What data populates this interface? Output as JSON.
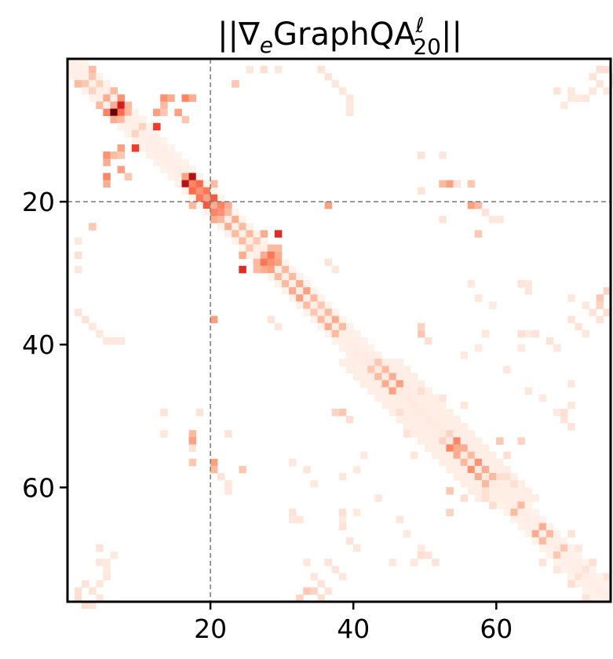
{
  "chart_data": {
    "type": "heatmap",
    "title": {
      "prefix": "||∇",
      "prefix_sub": "e",
      "main": "GraphQA",
      "sup": "ℓ",
      "sub": "20",
      "suffix": "||"
    },
    "xlabel": "",
    "ylabel": "",
    "size": 76,
    "x_range": [
      0,
      76
    ],
    "y_range": [
      0,
      76
    ],
    "x_ticks": [
      20,
      40,
      60
    ],
    "y_ticks": [
      20,
      40,
      60
    ],
    "x_tick_labels": [
      "20",
      "40",
      "60"
    ],
    "y_tick_labels": [
      "20",
      "40",
      "60"
    ],
    "reference_lines": {
      "x": 20,
      "y": 20,
      "style": "dashed",
      "color": "#808080"
    },
    "colormap": "Reds",
    "color_low": "#ffffff",
    "color_high": "#67000d",
    "grid": false,
    "value_range": [
      0,
      1
    ],
    "band": {
      "description_ranges": [
        [
          0,
          76
        ]
      ],
      "base_intensity": 0.05
    },
    "cells": [
      [
        7,
        6,
        1.0
      ],
      [
        6,
        7,
        0.85
      ],
      [
        7,
        7,
        0.6
      ],
      [
        6,
        6,
        0.35
      ],
      [
        5,
        7,
        0.45
      ],
      [
        7,
        5,
        0.5
      ],
      [
        8,
        6,
        0.35
      ],
      [
        6,
        8,
        0.3
      ],
      [
        5,
        5,
        0.35
      ],
      [
        4,
        6,
        0.3
      ],
      [
        6,
        4,
        0.3
      ],
      [
        3,
        1,
        0.3
      ],
      [
        1,
        3,
        0.3
      ],
      [
        3,
        2,
        0.25
      ],
      [
        2,
        3,
        0.25
      ],
      [
        4,
        3,
        0.2
      ],
      [
        3,
        4,
        0.2
      ],
      [
        12,
        9,
        0.75
      ],
      [
        9,
        12,
        0.75
      ],
      [
        12,
        7,
        0.4
      ],
      [
        7,
        12,
        0.4
      ],
      [
        8,
        7,
        0.3
      ],
      [
        7,
        8,
        0.3
      ],
      [
        10,
        9,
        0.2
      ],
      [
        9,
        10,
        0.2
      ],
      [
        13,
        5,
        0.45
      ],
      [
        5,
        13,
        0.45
      ],
      [
        14,
        5,
        0.35
      ],
      [
        5,
        14,
        0.35
      ],
      [
        13,
        6,
        0.3
      ],
      [
        6,
        13,
        0.3
      ],
      [
        13,
        7,
        0.25
      ],
      [
        7,
        13,
        0.25
      ],
      [
        17,
        16,
        0.9
      ],
      [
        16,
        17,
        0.9
      ],
      [
        17,
        17,
        0.5
      ],
      [
        16,
        16,
        0.4
      ],
      [
        18,
        17,
        0.6
      ],
      [
        17,
        18,
        0.6
      ],
      [
        18,
        18,
        0.45
      ],
      [
        19,
        18,
        0.55
      ],
      [
        18,
        19,
        0.55
      ],
      [
        19,
        19,
        0.4
      ],
      [
        20,
        19,
        0.65
      ],
      [
        19,
        20,
        0.65
      ],
      [
        20,
        20,
        0.35
      ],
      [
        21,
        20,
        0.5
      ],
      [
        20,
        21,
        0.5
      ],
      [
        22,
        20,
        0.35
      ],
      [
        20,
        22,
        0.35
      ],
      [
        21,
        21,
        0.45
      ],
      [
        22,
        21,
        0.3
      ],
      [
        21,
        22,
        0.3
      ],
      [
        16,
        5,
        0.5
      ],
      [
        5,
        16,
        0.5
      ],
      [
        17,
        5,
        0.35
      ],
      [
        5,
        17,
        0.35
      ],
      [
        15,
        7,
        0.4
      ],
      [
        7,
        15,
        0.4
      ],
      [
        16,
        8,
        0.25
      ],
      [
        8,
        16,
        0.25
      ],
      [
        24,
        29,
        0.8
      ],
      [
        29,
        24,
        0.8
      ],
      [
        29,
        24,
        0.8
      ],
      [
        27,
        28,
        0.55
      ],
      [
        28,
        27,
        0.55
      ],
      [
        28,
        28,
        0.45
      ],
      [
        29,
        28,
        0.4
      ],
      [
        28,
        29,
        0.4
      ],
      [
        27,
        24,
        0.35
      ],
      [
        24,
        27,
        0.35
      ],
      [
        28,
        26,
        0.3
      ],
      [
        26,
        28,
        0.3
      ],
      [
        29,
        26,
        0.3
      ],
      [
        26,
        29,
        0.3
      ],
      [
        29,
        27,
        0.35
      ],
      [
        27,
        29,
        0.35
      ],
      [
        23,
        22,
        0.35
      ],
      [
        22,
        23,
        0.35
      ],
      [
        24,
        23,
        0.3
      ],
      [
        23,
        24,
        0.3
      ],
      [
        25,
        24,
        0.3
      ],
      [
        24,
        25,
        0.3
      ],
      [
        26,
        25,
        0.25
      ],
      [
        25,
        26,
        0.25
      ],
      [
        27,
        27,
        0.35
      ],
      [
        30,
        29,
        0.3
      ],
      [
        29,
        30,
        0.3
      ],
      [
        31,
        30,
        0.3
      ],
      [
        30,
        31,
        0.3
      ],
      [
        32,
        31,
        0.35
      ],
      [
        31,
        32,
        0.35
      ],
      [
        33,
        32,
        0.4
      ],
      [
        32,
        33,
        0.4
      ],
      [
        34,
        33,
        0.3
      ],
      [
        33,
        34,
        0.3
      ],
      [
        35,
        34,
        0.25
      ],
      [
        34,
        35,
        0.25
      ],
      [
        36,
        35,
        0.3
      ],
      [
        35,
        36,
        0.3
      ],
      [
        37,
        36,
        0.35
      ],
      [
        36,
        37,
        0.35
      ],
      [
        38,
        37,
        0.3
      ],
      [
        37,
        38,
        0.3
      ],
      [
        20,
        36,
        0.4
      ],
      [
        36,
        20,
        0.4
      ],
      [
        20,
        17,
        0.3
      ],
      [
        17,
        20,
        0.3
      ],
      [
        20,
        56,
        0.4
      ],
      [
        56,
        20,
        0.4
      ],
      [
        17,
        52,
        0.3
      ],
      [
        52,
        17,
        0.3
      ],
      [
        17,
        53,
        0.4
      ],
      [
        53,
        17,
        0.4
      ],
      [
        20,
        57,
        0.3
      ],
      [
        57,
        20,
        0.3
      ],
      [
        53,
        54,
        0.5
      ],
      [
        54,
        53,
        0.5
      ],
      [
        54,
        54,
        0.35
      ],
      [
        55,
        54,
        0.35
      ],
      [
        54,
        55,
        0.35
      ],
      [
        56,
        55,
        0.3
      ],
      [
        55,
        56,
        0.3
      ],
      [
        57,
        56,
        0.45
      ],
      [
        56,
        57,
        0.45
      ],
      [
        58,
        57,
        0.35
      ],
      [
        57,
        58,
        0.35
      ],
      [
        59,
        58,
        0.3
      ],
      [
        58,
        59,
        0.3
      ],
      [
        45,
        44,
        0.35
      ],
      [
        44,
        45,
        0.35
      ],
      [
        46,
        45,
        0.4
      ],
      [
        45,
        46,
        0.4
      ],
      [
        43,
        44,
        0.3
      ],
      [
        44,
        43,
        0.3
      ],
      [
        42,
        43,
        0.25
      ],
      [
        43,
        42,
        0.25
      ],
      [
        63,
        62,
        0.3
      ],
      [
        62,
        63,
        0.3
      ],
      [
        66,
        65,
        0.35
      ],
      [
        65,
        66,
        0.35
      ],
      [
        67,
        66,
        0.3
      ],
      [
        66,
        67,
        0.3
      ],
      [
        69,
        68,
        0.25
      ],
      [
        68,
        69,
        0.25
      ],
      [
        49,
        38,
        0.25
      ],
      [
        38,
        49,
        0.25
      ],
      [
        52,
        17,
        0.3
      ],
      [
        17,
        52,
        0.3
      ],
      [
        57,
        24,
        0.25
      ],
      [
        24,
        57,
        0.25
      ],
      [
        32,
        75,
        0.2
      ],
      [
        75,
        32,
        0.2
      ],
      [
        33,
        74,
        0.25
      ],
      [
        74,
        33,
        0.25
      ],
      [
        34,
        74,
        0.2
      ],
      [
        74,
        34,
        0.2
      ],
      [
        35,
        1,
        0.12
      ],
      [
        1,
        35,
        0.12
      ],
      [
        36,
        2,
        0.12
      ],
      [
        2,
        36,
        0.12
      ],
      [
        37,
        3,
        0.1
      ],
      [
        3,
        37,
        0.1
      ],
      [
        38,
        4,
        0.1
      ],
      [
        4,
        38,
        0.1
      ],
      [
        39,
        5,
        0.1
      ],
      [
        5,
        39,
        0.1
      ],
      [
        39,
        6,
        0.1
      ],
      [
        6,
        39,
        0.1
      ],
      [
        39,
        7,
        0.1
      ],
      [
        7,
        39,
        0.1
      ],
      [
        27,
        1,
        0.15
      ],
      [
        1,
        27,
        0.15
      ],
      [
        29,
        1,
        0.1
      ],
      [
        1,
        29,
        0.1
      ],
      [
        25,
        1,
        0.1
      ],
      [
        1,
        25,
        0.1
      ],
      [
        23,
        3,
        0.25
      ],
      [
        3,
        23,
        0.25
      ],
      [
        49,
        13,
        0.12
      ],
      [
        13,
        49,
        0.12
      ],
      [
        52,
        13,
        0.1
      ],
      [
        13,
        52,
        0.1
      ],
      [
        56,
        17,
        0.25
      ],
      [
        17,
        56,
        0.25
      ],
      [
        74,
        1,
        0.15
      ],
      [
        1,
        74,
        0.15
      ],
      [
        75,
        1,
        0.15
      ],
      [
        1,
        75,
        0.15
      ],
      [
        76,
        2,
        0.15
      ],
      [
        2,
        76,
        0.15
      ],
      [
        76,
        3,
        0.12
      ],
      [
        3,
        76,
        0.12
      ],
      [
        68,
        4,
        0.12
      ],
      [
        4,
        68,
        0.12
      ],
      [
        70,
        4,
        0.1
      ],
      [
        4,
        70,
        0.1
      ],
      [
        72,
        5,
        0.1
      ],
      [
        5,
        72,
        0.1
      ],
      [
        73,
        4,
        0.1
      ],
      [
        4,
        73,
        0.1
      ],
      [
        55,
        61,
        0.15
      ],
      [
        61,
        55,
        0.15
      ],
      [
        52,
        53,
        0.2
      ],
      [
        53,
        52,
        0.2
      ],
      [
        58,
        60,
        0.15
      ],
      [
        60,
        58,
        0.15
      ],
      [
        60,
        53,
        0.25
      ],
      [
        53,
        60,
        0.25
      ],
      [
        58,
        61,
        0.15
      ],
      [
        61,
        58,
        0.15
      ],
      [
        59,
        62,
        0.15
      ],
      [
        62,
        59,
        0.15
      ],
      [
        49,
        37,
        0.2
      ],
      [
        37,
        49,
        0.2
      ],
      [
        50,
        39,
        0.15
      ],
      [
        39,
        50,
        0.15
      ],
      [
        53,
        63,
        0.2
      ],
      [
        63,
        53,
        0.2
      ],
      [
        70,
        73,
        0.15
      ],
      [
        73,
        70,
        0.15
      ],
      [
        71,
        72,
        0.12
      ],
      [
        72,
        71,
        0.12
      ],
      [
        72,
        75,
        0.12
      ],
      [
        75,
        72,
        0.12
      ],
      [
        66,
        70,
        0.12
      ],
      [
        70,
        66,
        0.12
      ],
      [
        68,
        71,
        0.1
      ],
      [
        71,
        68,
        0.1
      ],
      [
        35,
        75,
        0.15
      ],
      [
        75,
        35,
        0.15
      ],
      [
        2,
        73,
        0.12
      ],
      [
        73,
        2,
        0.12
      ],
      [
        3,
        74,
        0.12
      ],
      [
        74,
        3,
        0.12
      ],
      [
        4,
        75,
        0.1
      ],
      [
        75,
        4,
        0.1
      ],
      [
        5,
        70,
        0.08
      ],
      [
        70,
        5,
        0.08
      ],
      [
        5,
        71,
        0.08
      ],
      [
        71,
        5,
        0.08
      ],
      [
        6,
        69,
        0.08
      ],
      [
        69,
        6,
        0.08
      ],
      [
        31,
        56,
        0.1
      ],
      [
        56,
        31,
        0.1
      ],
      [
        33,
        57,
        0.1
      ],
      [
        57,
        33,
        0.1
      ],
      [
        34,
        59,
        0.08
      ],
      [
        59,
        34,
        0.08
      ],
      [
        38,
        58,
        0.1
      ],
      [
        58,
        38,
        0.1
      ],
      [
        40,
        57,
        0.08
      ],
      [
        57,
        40,
        0.08
      ],
      [
        41,
        55,
        0.08
      ],
      [
        55,
        41,
        0.08
      ],
      [
        46,
        49,
        0.15
      ],
      [
        49,
        46,
        0.15
      ],
      [
        47,
        52,
        0.12
      ],
      [
        52,
        47,
        0.12
      ],
      [
        48,
        55,
        0.1
      ],
      [
        55,
        48,
        0.1
      ],
      [
        46,
        64,
        0.1
      ],
      [
        64,
        46,
        0.1
      ],
      [
        47,
        66,
        0.08
      ],
      [
        66,
        47,
        0.08
      ],
      [
        49,
        68,
        0.08
      ],
      [
        68,
        49,
        0.08
      ],
      [
        61,
        43,
        0.1
      ],
      [
        43,
        61,
        0.1
      ],
      [
        63,
        40,
        0.08
      ],
      [
        40,
        63,
        0.08
      ],
      [
        64,
        38,
        0.08
      ],
      [
        38,
        64,
        0.08
      ],
      [
        70,
        36,
        0.12
      ],
      [
        36,
        70,
        0.12
      ],
      [
        71,
        37,
        0.12
      ],
      [
        37,
        71,
        0.12
      ],
      [
        72,
        38,
        0.1
      ],
      [
        38,
        72,
        0.1
      ],
      [
        69,
        49,
        0.15
      ],
      [
        49,
        69,
        0.15
      ],
      [
        69,
        50,
        0.12
      ],
      [
        50,
        69,
        0.12
      ],
      [
        38,
        63,
        0.15
      ],
      [
        63,
        38,
        0.15
      ],
      [
        38,
        65,
        0.12
      ],
      [
        65,
        38,
        0.12
      ],
      [
        39,
        67,
        0.12
      ],
      [
        67,
        39,
        0.12
      ],
      [
        40,
        68,
        0.1
      ],
      [
        68,
        40,
        0.1
      ],
      [
        33,
        70,
        0.1
      ],
      [
        70,
        33,
        0.1
      ],
      [
        34,
        72,
        0.1
      ],
      [
        72,
        34,
        0.1
      ],
      [
        35,
        73,
        0.12
      ],
      [
        73,
        35,
        0.12
      ],
      [
        36,
        74,
        0.12
      ],
      [
        74,
        36,
        0.12
      ],
      [
        51,
        70,
        0.12
      ],
      [
        70,
        51,
        0.12
      ],
      [
        48,
        70,
        0.1
      ],
      [
        70,
        48,
        0.1
      ],
      [
        45,
        70,
        0.1
      ],
      [
        70,
        45,
        0.1
      ],
      [
        31,
        63,
        0.12
      ],
      [
        63,
        31,
        0.12
      ],
      [
        31,
        64,
        0.1
      ],
      [
        64,
        31,
        0.1
      ],
      [
        32,
        64,
        0.1
      ],
      [
        64,
        32,
        0.1
      ],
      [
        28,
        36,
        0.12
      ],
      [
        36,
        28,
        0.12
      ],
      [
        29,
        37,
        0.1
      ],
      [
        37,
        29,
        0.1
      ],
      [
        18,
        49,
        0.12
      ],
      [
        49,
        18,
        0.12
      ],
      [
        52,
        22,
        0.12
      ],
      [
        22,
        52,
        0.12
      ],
      [
        54,
        17,
        0.12
      ],
      [
        17,
        54,
        0.12
      ],
      [
        58,
        21,
        0.12
      ],
      [
        21,
        58,
        0.12
      ],
      [
        59,
        22,
        0.1
      ],
      [
        22,
        59,
        0.1
      ],
      [
        60,
        22,
        0.1
      ],
      [
        22,
        60,
        0.1
      ]
    ]
  }
}
